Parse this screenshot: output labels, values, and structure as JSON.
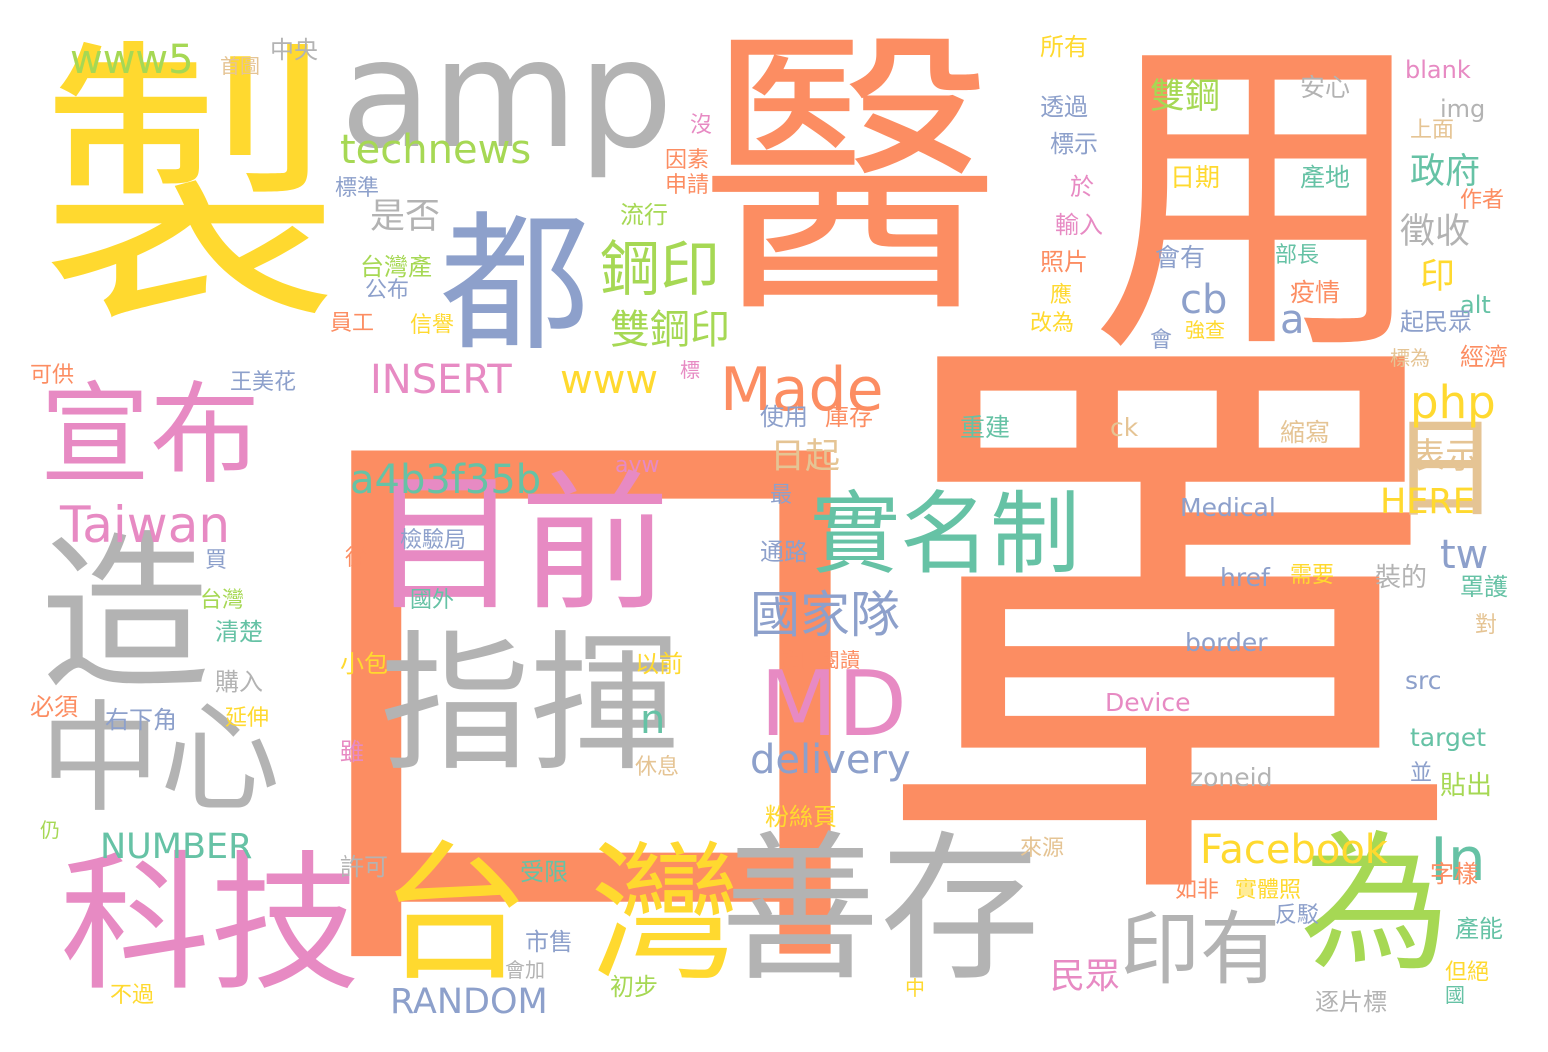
{
  "palette": {
    "orange": "#fc8d62",
    "gray": "#b3b3b3",
    "yellow": "#ffd92f",
    "pink": "#e78ac3",
    "blue": "#8da0cb",
    "green": "#66c2a5",
    "lime": "#a6d854",
    "tan": "#e5c494"
  },
  "words": [
    {
      "text": "口",
      "color": "orange"
    },
    {
      "text": "罩",
      "color": "orange"
    },
    {
      "text": "醫",
      "color": "orange"
    },
    {
      "text": "用",
      "color": "orange"
    },
    {
      "text": "製",
      "color": "yellow"
    },
    {
      "text": "amp",
      "color": "gray"
    },
    {
      "text": "都",
      "color": "blue"
    },
    {
      "text": "宣布",
      "color": "pink"
    },
    {
      "text": "造",
      "color": "gray"
    },
    {
      "text": "中心",
      "color": "gray"
    },
    {
      "text": "科技",
      "color": "pink"
    },
    {
      "text": "台",
      "color": "yellow"
    },
    {
      "text": "灣",
      "color": "yellow"
    },
    {
      "text": "善存",
      "color": "gray"
    },
    {
      "text": "為",
      "color": "lime"
    },
    {
      "text": "目前",
      "color": "pink"
    },
    {
      "text": "指揮",
      "color": "gray"
    },
    {
      "text": "實名制",
      "color": "green"
    },
    {
      "text": "MD",
      "color": "pink"
    },
    {
      "text": "日",
      "color": "tan"
    },
    {
      "text": "印有",
      "color": "gray"
    },
    {
      "text": "Made",
      "color": "orange"
    },
    {
      "text": "Taiwan",
      "color": "pink"
    },
    {
      "text": "www5",
      "color": "lime"
    },
    {
      "text": "technews",
      "color": "lime"
    },
    {
      "text": "a4b3f35b",
      "color": "green"
    },
    {
      "text": "鋼印",
      "color": "lime"
    },
    {
      "text": "雙鋼印",
      "color": "lime"
    },
    {
      "text": "國家隊",
      "color": "blue"
    },
    {
      "text": "Facebook",
      "color": "yellow"
    },
    {
      "text": "In",
      "color": "green"
    },
    {
      "text": "delivery",
      "color": "blue"
    },
    {
      "text": "www",
      "color": "yellow"
    },
    {
      "text": "INSERT",
      "color": "pink"
    },
    {
      "text": "NUMBER",
      "color": "green"
    },
    {
      "text": "RANDOM",
      "color": "blue"
    },
    {
      "text": "php",
      "color": "yellow"
    },
    {
      "text": "是否",
      "color": "gray"
    },
    {
      "text": "cb",
      "color": "blue"
    },
    {
      "text": "a",
      "color": "blue"
    },
    {
      "text": "tw",
      "color": "blue"
    },
    {
      "text": "n",
      "color": "green"
    },
    {
      "text": "政府",
      "color": "green"
    },
    {
      "text": "徵收",
      "color": "gray"
    },
    {
      "text": "日起",
      "color": "tan"
    },
    {
      "text": "表示",
      "color": "tan"
    },
    {
      "text": "HERE",
      "color": "yellow"
    },
    {
      "text": "雙鋼",
      "color": "lime"
    },
    {
      "text": "民眾",
      "color": "pink"
    },
    {
      "text": "印",
      "color": "yellow"
    },
    {
      "text": "安心",
      "color": "gray"
    },
    {
      "text": "日期",
      "color": "yellow"
    },
    {
      "text": "產地",
      "color": "green"
    },
    {
      "text": "會有",
      "color": "blue"
    },
    {
      "text": "疫情",
      "color": "orange"
    },
    {
      "text": "重建",
      "color": "green"
    },
    {
      "text": "ck",
      "color": "tan"
    },
    {
      "text": "縮寫",
      "color": "tan"
    },
    {
      "text": "Medical",
      "color": "blue"
    },
    {
      "text": "href",
      "color": "blue"
    },
    {
      "text": "border",
      "color": "blue"
    },
    {
      "text": "Device",
      "color": "pink"
    },
    {
      "text": "zoneid",
      "color": "gray"
    },
    {
      "text": "src",
      "color": "blue"
    },
    {
      "text": "target",
      "color": "green"
    },
    {
      "text": "blank",
      "color": "pink"
    },
    {
      "text": "img",
      "color": "gray"
    },
    {
      "text": "alt",
      "color": "green"
    },
    {
      "text": "檢驗局",
      "color": "blue"
    },
    {
      "text": "國外",
      "color": "green"
    },
    {
      "text": "avw",
      "color": "pink"
    },
    {
      "text": "台灣產",
      "color": "lime"
    },
    {
      "text": "公布",
      "color": "blue"
    },
    {
      "text": "信譽",
      "color": "yellow"
    },
    {
      "text": "員工",
      "color": "orange"
    },
    {
      "text": "王美花",
      "color": "blue"
    },
    {
      "text": "流行",
      "color": "lime"
    },
    {
      "text": "標準",
      "color": "blue"
    },
    {
      "text": "因素",
      "color": "orange"
    },
    {
      "text": "申請",
      "color": "orange"
    },
    {
      "text": "沒",
      "color": "pink"
    },
    {
      "text": "透過",
      "color": "blue"
    },
    {
      "text": "標示",
      "color": "blue"
    },
    {
      "text": "於",
      "color": "pink"
    },
    {
      "text": "輸入",
      "color": "pink"
    },
    {
      "text": "照片",
      "color": "orange"
    },
    {
      "text": "應",
      "color": "yellow"
    },
    {
      "text": "改為",
      "color": "yellow"
    },
    {
      "text": "所有",
      "color": "yellow"
    },
    {
      "text": "中央",
      "color": "gray"
    },
    {
      "text": "首圖",
      "color": "tan"
    },
    {
      "text": "可供",
      "color": "orange"
    },
    {
      "text": "使用",
      "color": "blue"
    },
    {
      "text": "庫存",
      "color": "orange"
    },
    {
      "text": "標",
      "color": "pink"
    },
    {
      "text": "最",
      "color": "blue"
    },
    {
      "text": "通路",
      "color": "blue"
    },
    {
      "text": "買",
      "color": "blue"
    },
    {
      "text": "台灣",
      "color": "lime"
    },
    {
      "text": "清楚",
      "color": "green"
    },
    {
      "text": "購入",
      "color": "gray"
    },
    {
      "text": "必須",
      "color": "orange"
    },
    {
      "text": "延伸",
      "color": "yellow"
    },
    {
      "text": "右下角",
      "color": "blue"
    },
    {
      "text": "小包",
      "color": "yellow"
    },
    {
      "text": "以前",
      "color": "yellow"
    },
    {
      "text": "雖",
      "color": "pink"
    },
    {
      "text": "從",
      "color": "orange"
    },
    {
      "text": "休息",
      "color": "tan"
    },
    {
      "text": "進口閱讀",
      "color": "orange"
    },
    {
      "text": "粉絲頁",
      "color": "yellow"
    },
    {
      "text": "許可",
      "color": "gray"
    },
    {
      "text": "受限",
      "color": "green"
    },
    {
      "text": "市售",
      "color": "blue"
    },
    {
      "text": "會加",
      "color": "gray"
    },
    {
      "text": "初步",
      "color": "lime"
    },
    {
      "text": "不過",
      "color": "yellow"
    },
    {
      "text": "仍",
      "color": "lime"
    },
    {
      "text": "中",
      "color": "yellow"
    },
    {
      "text": "來源",
      "color": "tan"
    },
    {
      "text": "如非",
      "color": "orange"
    },
    {
      "text": "實體照",
      "color": "yellow"
    },
    {
      "text": "反駁",
      "color": "blue"
    },
    {
      "text": "字樣",
      "color": "orange"
    },
    {
      "text": "產能",
      "color": "green"
    },
    {
      "text": "但絕",
      "color": "yellow"
    },
    {
      "text": "逐片標",
      "color": "gray"
    },
    {
      "text": "國",
      "color": "green"
    },
    {
      "text": "貼出",
      "color": "lime"
    },
    {
      "text": "並",
      "color": "blue"
    },
    {
      "text": "對",
      "color": "tan"
    },
    {
      "text": "罩護",
      "color": "green"
    },
    {
      "text": "裝的",
      "color": "gray"
    },
    {
      "text": "需要",
      "color": "yellow"
    },
    {
      "text": "經濟",
      "color": "orange"
    },
    {
      "text": "標為",
      "color": "tan"
    },
    {
      "text": "起民眾",
      "color": "blue"
    },
    {
      "text": "部長",
      "color": "green"
    },
    {
      "text": "強查",
      "color": "yellow"
    },
    {
      "text": "會",
      "color": "blue"
    },
    {
      "text": "上面",
      "color": "tan"
    },
    {
      "text": "作者",
      "color": "orange"
    }
  ]
}
